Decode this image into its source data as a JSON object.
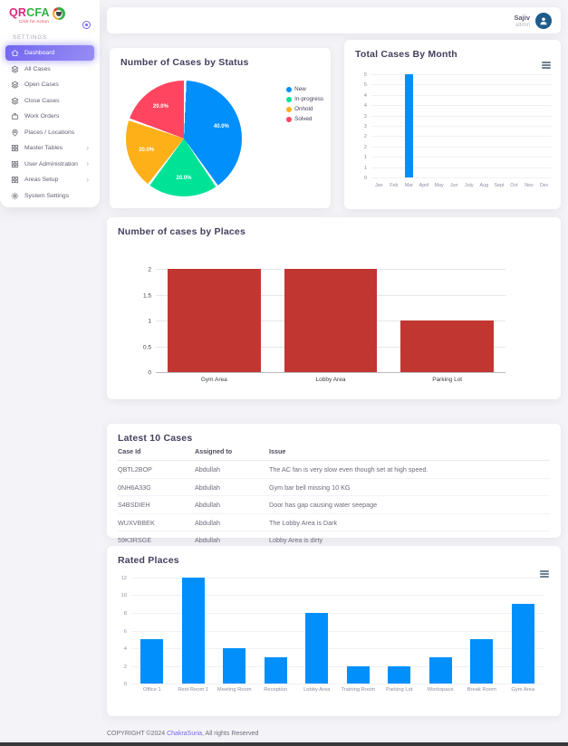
{
  "sidebar": {
    "logo": {
      "part1": "QR",
      "part2": "CFA",
      "tagline": "Click for Action"
    },
    "section_label": "SETTINGS",
    "items": [
      {
        "label": "Dashboard",
        "icon": "home",
        "active": true,
        "chevron": false
      },
      {
        "label": "All Cases",
        "icon": "layers",
        "active": false,
        "chevron": false
      },
      {
        "label": "Open Cases",
        "icon": "layers",
        "active": false,
        "chevron": false
      },
      {
        "label": "Close Cases",
        "icon": "layers",
        "active": false,
        "chevron": false
      },
      {
        "label": "Work Orders",
        "icon": "briefcase",
        "active": false,
        "chevron": false
      },
      {
        "label": "Places / Locations",
        "icon": "map-pin",
        "active": false,
        "chevron": false
      },
      {
        "label": "Master Tables",
        "icon": "grid",
        "active": false,
        "chevron": true
      },
      {
        "label": "User Administration",
        "icon": "grid",
        "active": false,
        "chevron": true
      },
      {
        "label": "Areas Setup",
        "icon": "grid",
        "active": false,
        "chevron": true
      },
      {
        "label": "System Settings",
        "icon": "gear",
        "active": false,
        "chevron": false
      }
    ]
  },
  "header": {
    "user_name": "Sajiv",
    "user_role": "admin"
  },
  "cards": {
    "status": {
      "title": "Number of Cases by Status"
    },
    "month": {
      "title": "Total Cases By Month"
    },
    "places": {
      "title": "Number of cases by Places"
    },
    "latest": {
      "title": "Latest 10 Cases"
    },
    "rated": {
      "title": "Rated Places"
    }
  },
  "table": {
    "columns": [
      "Case Id",
      "Assigned to",
      "Issue"
    ],
    "rows": [
      [
        "QBTL2BOP",
        "Abdullah",
        "The AC fan is very slow even though set at high speed."
      ],
      [
        "0NH6A33G",
        "Abdullah",
        "Gym bar bell missing 10 KG"
      ],
      [
        "S4BSDIEH",
        "Abdullah",
        "Door has gap causing water seepage"
      ],
      [
        "WUXVBBEK",
        "Abdullah",
        "The Lobby Area is Dark"
      ],
      [
        "59K3RSGE",
        "Abdullah",
        "Lobby Area is dirty"
      ]
    ]
  },
  "footer": {
    "copyright_prefix": "COPYRIGHT ©2024 ",
    "brand": "ChakraSuria",
    "copyright_suffix": ", All rights Reserved"
  },
  "chart_data": [
    {
      "id": "status-pie",
      "type": "pie",
      "title": "Number of Cases by Status",
      "labels": [
        "New",
        "In-progress",
        "Onhold",
        "Solved"
      ],
      "values": [
        40,
        20,
        20,
        20
      ],
      "value_labels": [
        "40.0%",
        "20.0%",
        "20.0%",
        "20.0%"
      ],
      "colors": [
        "#008FFB",
        "#00E396",
        "#FEB019",
        "#FF4560"
      ],
      "legend_position": "right"
    },
    {
      "id": "month-bar",
      "type": "bar",
      "title": "Total Cases By Month",
      "categories": [
        "Jan",
        "Feb",
        "Mar",
        "April",
        "May",
        "Jun",
        "July",
        "Aug",
        "Sept",
        "Oct",
        "Nov",
        "Dec"
      ],
      "values": [
        0,
        0,
        5,
        0,
        0,
        0,
        0,
        0,
        0,
        0,
        0,
        0
      ],
      "ylim": [
        0,
        5
      ],
      "ymax": 5,
      "ytick_labels_top_down": [
        "5",
        "5",
        "4",
        "4",
        "3",
        "3",
        "2",
        "2",
        "1",
        "1",
        "0"
      ],
      "bar_color": "#008FFB",
      "bar_width_pct": 55,
      "grid": true,
      "legend_position": "none"
    },
    {
      "id": "places-bar",
      "type": "bar",
      "title": "Number of cases by Places",
      "categories": [
        "Gym Area",
        "Lobby Area",
        "Parking Lot"
      ],
      "values": [
        2,
        2,
        1
      ],
      "ylim": [
        0,
        2
      ],
      "ymax": 2,
      "ytick_labels_top_down": [
        "2",
        "1.5",
        "1",
        "0.5",
        "0"
      ],
      "bar_color": "#c23632",
      "bar_width_pct": 80,
      "grid": true,
      "legend_position": "none"
    },
    {
      "id": "rated-bar",
      "type": "bar",
      "title": "Rated Places",
      "categories": [
        "Office 1",
        "Rest Room 1",
        "Meeting Room",
        "Reception",
        "Lobby Area",
        "Training Room",
        "Parking Lot",
        "Workspace",
        "Break Room",
        "Gym Area"
      ],
      "values": [
        5,
        12,
        4,
        3,
        8,
        2,
        2,
        3,
        5,
        9
      ],
      "ylim": [
        0,
        12
      ],
      "ymax": 12,
      "ytick_labels_top_down": [
        "12",
        "10",
        "8",
        "6",
        "4",
        "2",
        "0"
      ],
      "bar_color": "#008FFB",
      "bar_width_pct": 55,
      "grid": true,
      "legend_position": "none"
    }
  ]
}
